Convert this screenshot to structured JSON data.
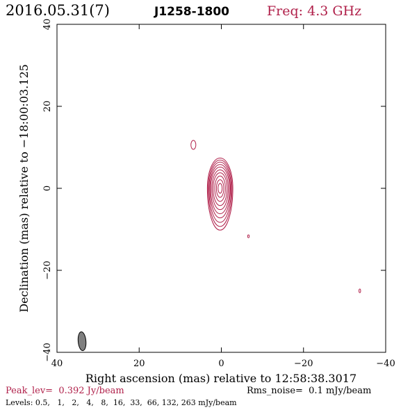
{
  "header": {
    "date": "2016.05.31(7)",
    "source": "J1258-1800",
    "freq": "Freq: 4.3 GHz"
  },
  "footer": {
    "peak": "Peak_lev=  0.392 Jy/beam",
    "rms": "Rms_noise=  0.1 mJy/beam",
    "levels": "Levels: 0.5,   1,   2,   4,   8,  16,  33,  66, 132, 263 mJy/beam"
  },
  "colors": {
    "contour": "#b0204a",
    "beam_fill": "#7f7f7f",
    "axes": "#000000"
  },
  "chart_data": {
    "type": "contour",
    "xlabel": "Right ascension (mas) relative to 12:58:38.3017",
    "ylabel": "Declination (mas) relative to −18:00:03.125",
    "xlim": [
      40,
      -40
    ],
    "ylim": [
      -40,
      40
    ],
    "xticks": [
      40,
      20,
      0,
      -20,
      -40
    ],
    "yticks": [
      -40,
      -20,
      0,
      20,
      40
    ],
    "xtick_labels": [
      "40",
      "20",
      "0",
      "−20",
      "−40"
    ],
    "ytick_labels": [
      "−40",
      "−20",
      "0",
      "20",
      "40"
    ],
    "grid": false,
    "contour_levels_mJy": [
      0.5,
      1,
      2,
      4,
      8,
      16,
      33,
      66,
      132,
      263
    ],
    "peak_Jy_per_beam": 0.392,
    "rms_mJy_per_beam": 0.1,
    "main_component": {
      "x": 0.3,
      "y": 0.0,
      "levels": [
        {
          "rx": 3.1,
          "ry_up": 7.4,
          "ry_down": 10.2
        },
        {
          "rx": 2.9,
          "ry_up": 6.9,
          "ry_down": 9.3
        },
        {
          "rx": 2.7,
          "ry_up": 6.4,
          "ry_down": 8.3
        },
        {
          "rx": 2.5,
          "ry_up": 5.8,
          "ry_down": 7.2
        },
        {
          "rx": 2.3,
          "ry_up": 5.2,
          "ry_down": 6.2
        },
        {
          "rx": 2.0,
          "ry_up": 4.5,
          "ry_down": 5.2
        },
        {
          "rx": 1.7,
          "ry_up": 3.8,
          "ry_down": 4.2
        },
        {
          "rx": 1.3,
          "ry_up": 3.0,
          "ry_down": 3.2
        },
        {
          "rx": 0.9,
          "ry_up": 2.1,
          "ry_down": 2.2
        },
        {
          "rx": 0.5,
          "ry_up": 1.2,
          "ry_down": 1.2
        }
      ]
    },
    "minor_components": [
      {
        "x": 6.8,
        "y": 10.6,
        "rx": 0.6,
        "ry": 1.1
      },
      {
        "x": -6.6,
        "y": -11.7,
        "rx": 0.2,
        "ry": 0.35
      },
      {
        "x": -33.7,
        "y": -25.0,
        "rx": 0.2,
        "ry": 0.45
      }
    ],
    "beam": {
      "x": 33.9,
      "y": -37.3,
      "major": 4.6,
      "minor": 1.9,
      "pa_deg": -5
    }
  }
}
